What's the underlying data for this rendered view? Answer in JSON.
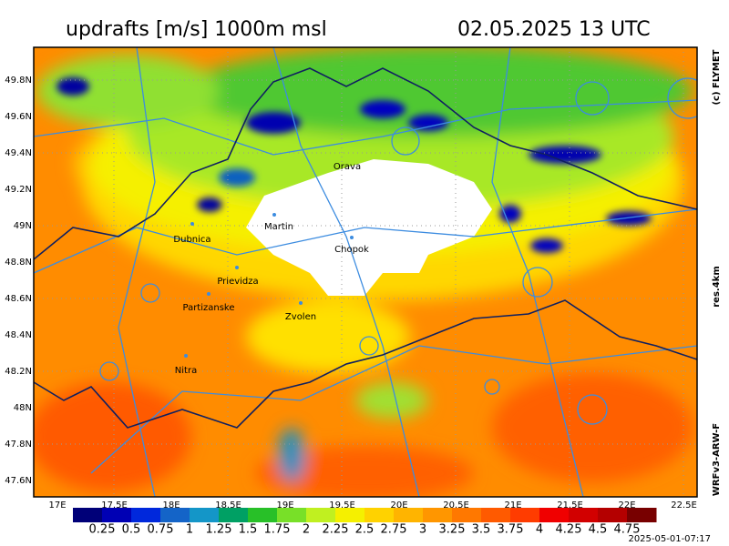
{
  "header": {
    "title": "updrafts [m/s] 1000m msl",
    "valid_time": "02.05.2025 13 UTC"
  },
  "side": {
    "copyright": "(c) FLYMET",
    "resolution": "res.4km",
    "model": "WRFv3-ARW-F"
  },
  "footer": {
    "run_time": "2025-05-01-07:17"
  },
  "axes": {
    "lat_labels": [
      "49.8N",
      "49.6N",
      "49.4N",
      "49.2N",
      "49N",
      "48.8N",
      "48.6N",
      "48.4N",
      "48.2N",
      "48N",
      "47.8N",
      "47.6N"
    ],
    "lon_labels": [
      "17E",
      "17.5E",
      "18E",
      "18.5E",
      "19E",
      "19.5E",
      "20E",
      "20.5E",
      "21E",
      "21.5E",
      "22E",
      "22.5E"
    ]
  },
  "cities": [
    "Orava",
    "Martin",
    "Dubnica",
    "Chopok",
    "Prievidza",
    "Partizanske",
    "Zvolen",
    "Nitra"
  ],
  "legend": {
    "colors": [
      "#000078",
      "#0000b4",
      "#0028dc",
      "#1464c8",
      "#1496c8",
      "#00a064",
      "#28c028",
      "#78e028",
      "#c0f020",
      "#f5f000",
      "#ffd200",
      "#ffb400",
      "#ff9600",
      "#ff7800",
      "#ff5a00",
      "#ff3c00",
      "#f00000",
      "#d20000",
      "#b40000",
      "#780000"
    ],
    "labels": [
      "0.25",
      "0.5",
      "0.75",
      "1",
      "1.25",
      "1.5",
      "1.75",
      "2",
      "2.25",
      "2.5",
      "2.75",
      "3",
      "3.25",
      "3.5",
      "3.75",
      "4",
      "4.25",
      "4.5",
      "4.75"
    ]
  }
}
